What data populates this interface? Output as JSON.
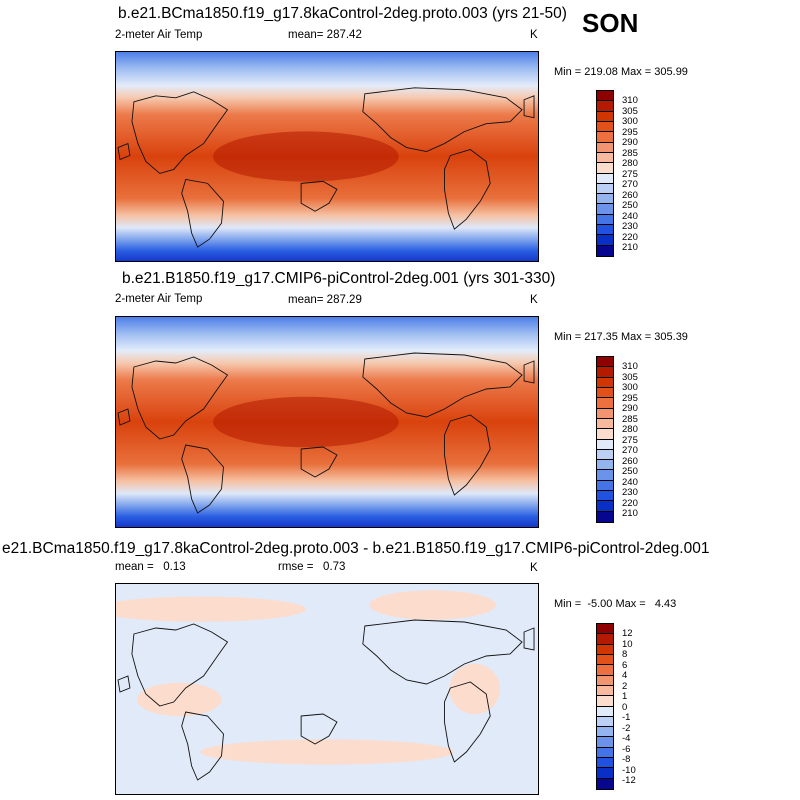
{
  "season": "SON",
  "units": "K",
  "panels": [
    {
      "title": "b.e21.BCma1850.f19_g17.8kaControl-2deg.proto.003 (yrs 21-50)",
      "field": "2-meter Air Temp",
      "mean_label": "mean= 287.42",
      "rmse_label": "",
      "minmax": "Min = 219.08 Max = 305.99",
      "levels": [
        "310",
        "305",
        "300",
        "295",
        "290",
        "285",
        "280",
        "275",
        "270",
        "260",
        "250",
        "240",
        "230",
        "220",
        "210"
      ]
    },
    {
      "title": "b.e21.B1850.f19_g17.CMIP6-piControl-2deg.001 (yrs 301-330)",
      "field": "2-meter Air Temp",
      "mean_label": "mean= 287.29",
      "rmse_label": "",
      "minmax": "Min = 217.35 Max = 305.39",
      "levels": [
        "310",
        "305",
        "300",
        "295",
        "290",
        "285",
        "280",
        "275",
        "270",
        "260",
        "250",
        "240",
        "230",
        "220",
        "210"
      ]
    },
    {
      "title": "e21.BCma1850.f19_g17.8kaControl-2deg.proto.003 - b.e21.B1850.f19_g17.CMIP6-piControl-2deg.001",
      "field": "",
      "mean_label": "mean =   0.13",
      "rmse_label": "rmse =   0.73",
      "minmax": "Min =  -5.00 Max =   4.43",
      "levels": [
        "12",
        "10",
        "8",
        "6",
        "4",
        "2",
        "1",
        "0",
        "-1",
        "-2",
        "-4",
        "-6",
        "-8",
        "-10",
        "-12"
      ]
    }
  ],
  "abs_colors": [
    "#8f0000",
    "#b31a00",
    "#cf3600",
    "#e3511a",
    "#ed7040",
    "#f39470",
    "#f8b99c",
    "#fcdccc",
    "#e1eaf9",
    "#bcd0f5",
    "#94b4f0",
    "#6b93ea",
    "#4474e6",
    "#2052df",
    "#0a2fc7",
    "#06068f"
  ],
  "diff_colors": [
    "#8f0000",
    "#b31a00",
    "#cf3600",
    "#e3511a",
    "#ed7040",
    "#f39470",
    "#f8b99c",
    "#fcdccc",
    "#e1eaf9",
    "#bcd0f5",
    "#94b4f0",
    "#6b93ea",
    "#4474e6",
    "#2052df",
    "#0a2fc7",
    "#06068f"
  ]
}
